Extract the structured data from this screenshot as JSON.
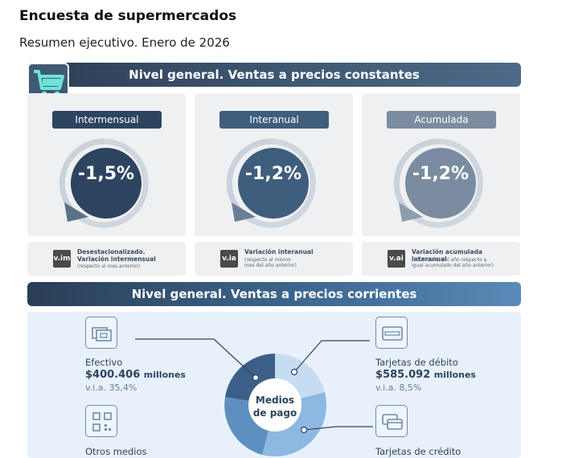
{
  "header": {
    "title": "Encuesta de supermercados",
    "subtitle": "Resumen ejecutivo. Enero de 2026"
  },
  "section_constant": {
    "title": "Nivel general. Ventas a precios constantes",
    "cards": [
      {
        "label": "Intermensual",
        "value": "-1,5%",
        "color": "#2d4460"
      },
      {
        "label": "Interanual",
        "value": "-1,2%",
        "color": "#3f5d7d"
      },
      {
        "label": "Acumulada",
        "value": "-1,2%",
        "color": "#7b8ca0"
      }
    ],
    "notes": [
      {
        "tag": "v.im",
        "line1": "Desestacionalizado.",
        "line2": "Variación intermensual",
        "line3": "(respecto al mes anterior)",
        "line4": ""
      },
      {
        "tag": "v.ia",
        "line1": "Variación interanual",
        "line2": "",
        "line3": "(respecto al mismo",
        "line4": "mes del año anterior)"
      },
      {
        "tag": "v.ai",
        "line1": "Variación acumulada interanual",
        "line2": "",
        "line3": "(acumulado del año respecto a",
        "line4": "igual acumulado del año anterior)"
      }
    ]
  },
  "section_current": {
    "title": "Nivel general. Ventas a precios corrientes",
    "donut_label_1": "Medios",
    "donut_label_2": "de pago",
    "efectivo": {
      "label": "Efectivo",
      "amount": "$400.406",
      "unit": "millones",
      "via": "v.i.a. 35,4%"
    },
    "debito": {
      "label": "Tarjetas de débito",
      "amount": "$585.092",
      "unit": "millones",
      "via": "v.i.a. 8,5%"
    },
    "otros": {
      "label": "Otros medios"
    },
    "credito": {
      "label": "Tarjetas de crédito"
    }
  }
}
